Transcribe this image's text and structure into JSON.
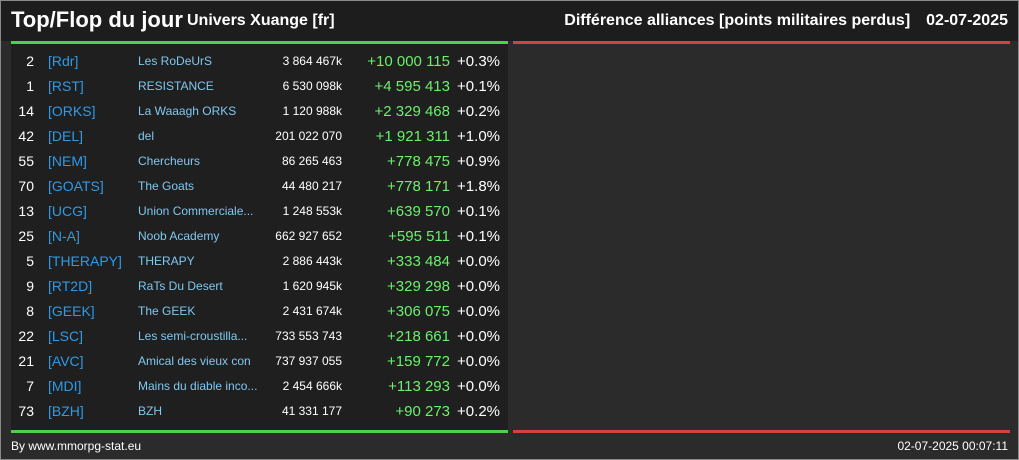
{
  "header": {
    "title": "Top/Flop du jour",
    "universe": "Univers Xuange [fr]",
    "metric": "Différence alliances [points militaires perdus]",
    "date": "02-07-2025"
  },
  "colors": {
    "top_accent": "#4ed04e",
    "flop_accent": "#d2433b",
    "tag": "#2f9ae6",
    "name": "#7fc8f0",
    "positive_diff": "#6cf06c"
  },
  "rows": [
    {
      "rank": "2",
      "tag": "[Rdr]",
      "name": "Les RoDeUrS",
      "total": "3 864 467k",
      "diff": "+10 000 115",
      "pct": "+0.3%"
    },
    {
      "rank": "1",
      "tag": "[RST]",
      "name": "RESISTANCE",
      "total": "6 530 098k",
      "diff": "+4 595 413",
      "pct": "+0.1%"
    },
    {
      "rank": "14",
      "tag": "[ORKS]",
      "name": "La Waaagh ORKS",
      "total": "1 120 988k",
      "diff": "+2 329 468",
      "pct": "+0.2%"
    },
    {
      "rank": "42",
      "tag": "[DEL]",
      "name": "del",
      "total": "201 022 070",
      "diff": "+1 921 311",
      "pct": "+1.0%"
    },
    {
      "rank": "55",
      "tag": "[NEM]",
      "name": "Chercheurs",
      "total": "86 265 463",
      "diff": "+778 475",
      "pct": "+0.9%"
    },
    {
      "rank": "70",
      "tag": "[GOATS]",
      "name": "The Goats",
      "total": "44 480 217",
      "diff": "+778 171",
      "pct": "+1.8%"
    },
    {
      "rank": "13",
      "tag": "[UCG]",
      "name": "Union Commerciale...",
      "total": "1 248 553k",
      "diff": "+639 570",
      "pct": "+0.1%"
    },
    {
      "rank": "25",
      "tag": "[N-A]",
      "name": "Noob Academy",
      "total": "662 927 652",
      "diff": "+595 511",
      "pct": "+0.1%"
    },
    {
      "rank": "5",
      "tag": "[THERAPY]",
      "name": "THERAPY",
      "total": "2 886 443k",
      "diff": "+333 484",
      "pct": "+0.0%"
    },
    {
      "rank": "9",
      "tag": "[RT2D]",
      "name": "RaTs Du Desert",
      "total": "1 620 945k",
      "diff": "+329 298",
      "pct": "+0.0%"
    },
    {
      "rank": "8",
      "tag": "[GEEK]",
      "name": "The GEEK",
      "total": "2 431 674k",
      "diff": "+306 075",
      "pct": "+0.0%"
    },
    {
      "rank": "22",
      "tag": "[LSC]",
      "name": "Les semi-croustilla...",
      "total": "733 553 743",
      "diff": "+218 661",
      "pct": "+0.0%"
    },
    {
      "rank": "21",
      "tag": "[AVC]",
      "name": "Amical des vieux con",
      "total": "737 937 055",
      "diff": "+159 772",
      "pct": "+0.0%"
    },
    {
      "rank": "7",
      "tag": "[MDI]",
      "name": "Mains du diable inco...",
      "total": "2 454 666k",
      "diff": "+113 293",
      "pct": "+0.0%"
    },
    {
      "rank": "73",
      "tag": "[BZH]",
      "name": "BZH",
      "total": "41 331 177",
      "diff": "+90 273",
      "pct": "+0.2%"
    }
  ],
  "footer": {
    "credit": "By www.mmorpg-stat.eu",
    "timestamp": "02-07-2025 00:07:11"
  }
}
